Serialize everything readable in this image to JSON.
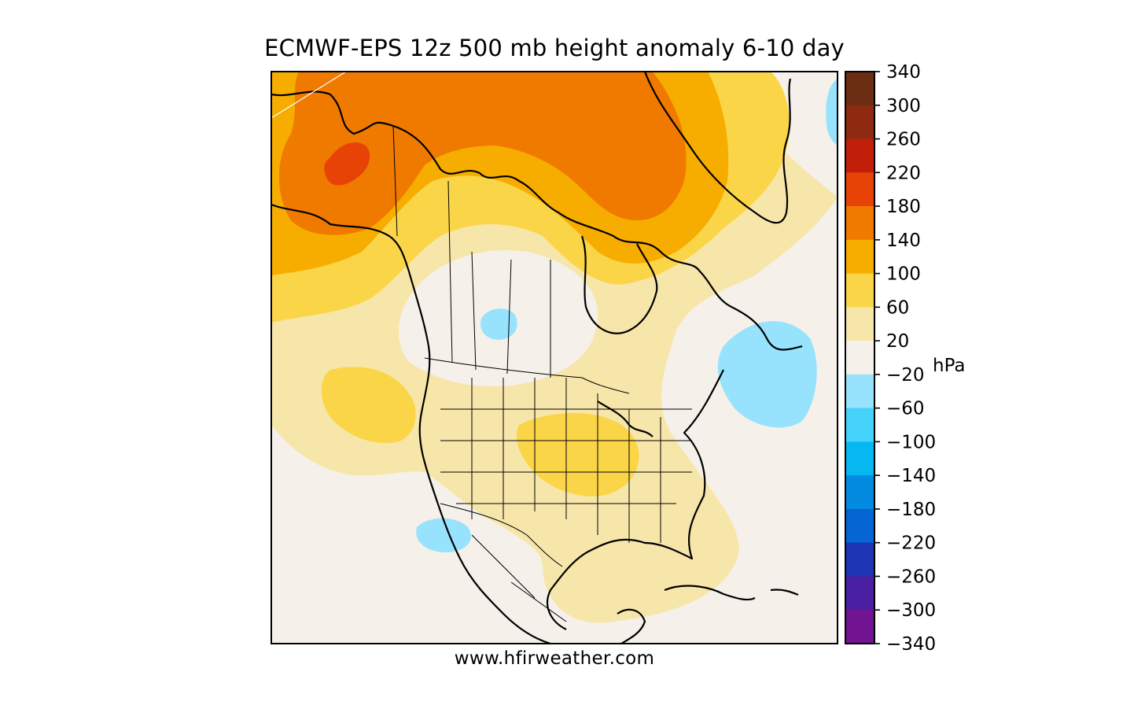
{
  "title": "ECMWF-EPS 12z 500 mb height anomaly 6-10 day",
  "credit": "www.hfirweather.com",
  "colorbar": {
    "unit": "hPa",
    "tick_labels": [
      "340",
      "300",
      "260",
      "220",
      "180",
      "140",
      "100",
      "60",
      "20",
      "−20",
      "−60",
      "−100",
      "−140",
      "−180",
      "−220",
      "−260",
      "−300",
      "−340"
    ],
    "colors": [
      "#6b2e12",
      "#8e2a10",
      "#c11f0a",
      "#e84306",
      "#f07a00",
      "#f6ad00",
      "#fbd548",
      "#f7e6aa",
      "#f5f1ea",
      "#97e2fc",
      "#45d3fb",
      "#06b7f1",
      "#028be1",
      "#0565d3",
      "#1d35b3",
      "#4b1fa1",
      "#721491"
    ]
  },
  "map": {
    "region": "North America",
    "field": "500 mb height anomaly",
    "features": [
      {
        "name": "alaska-ridge-max",
        "level": 220
      },
      {
        "name": "arctic-ridge",
        "level": 140
      },
      {
        "name": "prairies-weak-trough",
        "level": -20
      },
      {
        "name": "maritimes-trough",
        "level": -20
      },
      {
        "name": "baja-trough",
        "level": -20
      },
      {
        "name": "central-us-ridge",
        "level": 60
      }
    ]
  }
}
